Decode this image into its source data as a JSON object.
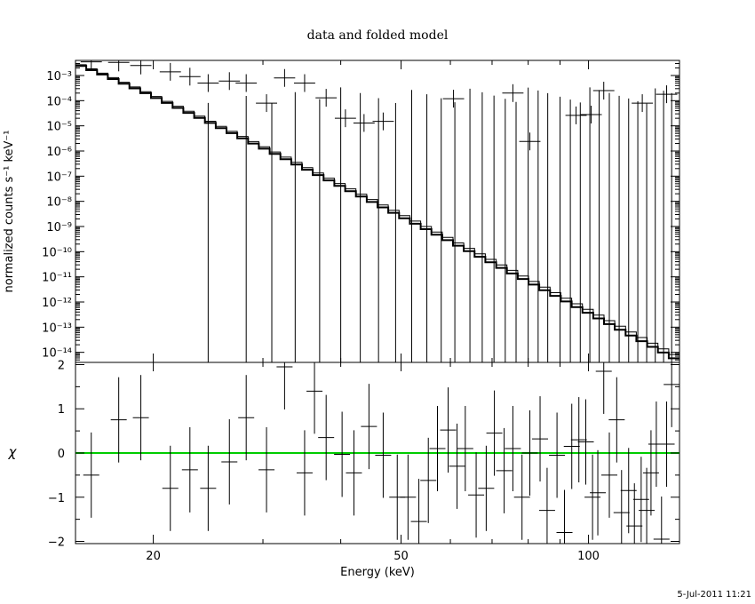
{
  "chart_data": [
    {
      "type": "line",
      "title": "data and folded model",
      "xlabel": "Energy (keV)",
      "ylabel": "normalized counts s⁻¹ keV⁻¹",
      "xscale": "log",
      "yscale": "log",
      "xlim": [
        15,
        140
      ],
      "ylim_exponents": [
        -14.4,
        -2.4
      ],
      "ytick_labels": [
        "10⁻³",
        "10⁻⁴",
        "10⁻⁵",
        "10⁻⁶",
        "10⁻⁷",
        "10⁻⁸",
        "10⁻⁹",
        "10⁻¹⁰",
        "10⁻¹¹",
        "10⁻¹²",
        "10⁻¹³",
        "10⁻¹⁴"
      ],
      "ytick_exponents": [
        -3,
        -4,
        -5,
        -6,
        -7,
        -8,
        -9,
        -10,
        -11,
        -12,
        -13,
        -14
      ],
      "series": [
        {
          "style": "crosses",
          "points": [
            {
              "x": 15.9,
              "y": 0.0035
            },
            {
              "x": 17.6,
              "y": 0.0033
            },
            {
              "x": 19.1,
              "y": 0.0025
            },
            {
              "x": 21.3,
              "y": 0.0014
            },
            {
              "x": 22.9,
              "y": 0.0009
            },
            {
              "x": 24.5,
              "y": 0.0005
            },
            {
              "x": 26.5,
              "y": 0.0006
            },
            {
              "x": 28.2,
              "y": 0.0005
            },
            {
              "x": 30.4,
              "y": 8e-05
            },
            {
              "x": 32.5,
              "y": 0.0008
            },
            {
              "x": 35.0,
              "y": 0.0005
            },
            {
              "x": 37.9,
              "y": 0.00013
            },
            {
              "x": 40.7,
              "y": 2e-05
            },
            {
              "x": 43.6,
              "y": 1.3e-05
            },
            {
              "x": 46.8,
              "y": 1.5e-05
            },
            {
              "x": 60.7,
              "y": 0.00012
            },
            {
              "x": 75.6,
              "y": 0.0002
            },
            {
              "x": 80.5,
              "y": 2.4e-06
            },
            {
              "x": 95.5,
              "y": 2.6e-05
            },
            {
              "x": 101.0,
              "y": 2.8e-05
            },
            {
              "x": 105.8,
              "y": 0.00025
            },
            {
              "x": 122.0,
              "y": 8e-05
            },
            {
              "x": 133.5,
              "y": 0.00018
            }
          ],
          "upper_limit_energies": [
            24.5,
            28.2,
            31.0,
            33.8,
            37.0,
            40.0,
            43.0,
            46.0,
            49.0,
            52.0,
            55.0,
            58.0,
            61.0,
            64.5,
            67.5,
            70.5,
            73.5,
            76.5,
            80.0,
            83.0,
            86.0,
            90.0,
            93.5,
            97.0,
            100.5,
            104.0,
            108.0,
            112.0,
            116.0,
            120.0,
            124.0,
            128.0,
            132.0,
            136.0
          ]
        },
        {
          "style": "model-steps-thick",
          "edges_keV": [
            15,
            140
          ],
          "log10_start": -2.55,
          "log10_end": -14.35
        },
        {
          "style": "model-steps-thin",
          "edges_keV": [
            15,
            140
          ],
          "log10_start": -2.5,
          "log10_end": -14.2
        }
      ]
    },
    {
      "type": "scatter",
      "xlabel": "Energy (keV)",
      "ylabel": "χ",
      "xscale": "log",
      "xlim": [
        15,
        140
      ],
      "ylim": [
        -2.05,
        2.05
      ],
      "yticks": [
        -2,
        -1,
        0,
        1,
        2
      ],
      "ytick_labels": [
        "−2",
        "−1",
        "0",
        "1",
        "2"
      ],
      "xticks": [
        20,
        50,
        100
      ],
      "xtick_labels": [
        "20",
        "50",
        "100"
      ],
      "zero_line_color": "#00cc00",
      "points": [
        {
          "x": 15.9,
          "y": -0.5
        },
        {
          "x": 17.6,
          "y": 0.75
        },
        {
          "x": 19.1,
          "y": 0.8
        },
        {
          "x": 21.3,
          "y": -0.8
        },
        {
          "x": 22.9,
          "y": -0.38
        },
        {
          "x": 24.5,
          "y": -0.8
        },
        {
          "x": 26.5,
          "y": -0.2
        },
        {
          "x": 28.2,
          "y": 0.8
        },
        {
          "x": 30.4,
          "y": -0.38
        },
        {
          "x": 32.5,
          "y": 1.95
        },
        {
          "x": 35.0,
          "y": -0.45
        },
        {
          "x": 36.3,
          "y": 1.4
        },
        {
          "x": 37.9,
          "y": 0.35
        },
        {
          "x": 40.2,
          "y": -0.03
        },
        {
          "x": 42.0,
          "y": -0.45
        },
        {
          "x": 44.4,
          "y": 0.6
        },
        {
          "x": 46.8,
          "y": -0.05
        },
        {
          "x": 49.3,
          "y": -1.0
        },
        {
          "x": 51.3,
          "y": -1.0
        },
        {
          "x": 53.4,
          "y": -1.55
        },
        {
          "x": 55.3,
          "y": -0.62
        },
        {
          "x": 57.2,
          "y": 0.1
        },
        {
          "x": 59.5,
          "y": 0.52
        },
        {
          "x": 61.5,
          "y": -0.3
        },
        {
          "x": 63.4,
          "y": 0.1
        },
        {
          "x": 66.0,
          "y": -0.95
        },
        {
          "x": 68.5,
          "y": -0.8
        },
        {
          "x": 70.6,
          "y": 0.45
        },
        {
          "x": 73.2,
          "y": -0.4
        },
        {
          "x": 75.6,
          "y": 0.1
        },
        {
          "x": 78.2,
          "y": -1.0
        },
        {
          "x": 80.5,
          "y": 0.0
        },
        {
          "x": 83.6,
          "y": 0.32
        },
        {
          "x": 85.8,
          "y": -1.3
        },
        {
          "x": 89.0,
          "y": -0.05
        },
        {
          "x": 91.5,
          "y": -1.8
        },
        {
          "x": 94.0,
          "y": 0.15
        },
        {
          "x": 96.5,
          "y": 0.3
        },
        {
          "x": 99.0,
          "y": 0.25
        },
        {
          "x": 101.5,
          "y": -1.0
        },
        {
          "x": 103.5,
          "y": -0.9
        },
        {
          "x": 105.8,
          "y": 1.85
        },
        {
          "x": 108.0,
          "y": -0.5
        },
        {
          "x": 111.0,
          "y": 0.75
        },
        {
          "x": 113.0,
          "y": -1.35
        },
        {
          "x": 116.0,
          "y": -0.85
        },
        {
          "x": 118.5,
          "y": -1.65
        },
        {
          "x": 121.5,
          "y": -1.05
        },
        {
          "x": 124.0,
          "y": -1.3
        },
        {
          "x": 126.0,
          "y": -0.45
        },
        {
          "x": 128.5,
          "y": 0.2
        },
        {
          "x": 131.0,
          "y": -1.95
        },
        {
          "x": 133.5,
          "y": 0.2
        },
        {
          "x": 136.0,
          "y": 1.55
        }
      ]
    }
  ],
  "footer": {
    "timestamp": "5-Jul-2011 11:21"
  }
}
